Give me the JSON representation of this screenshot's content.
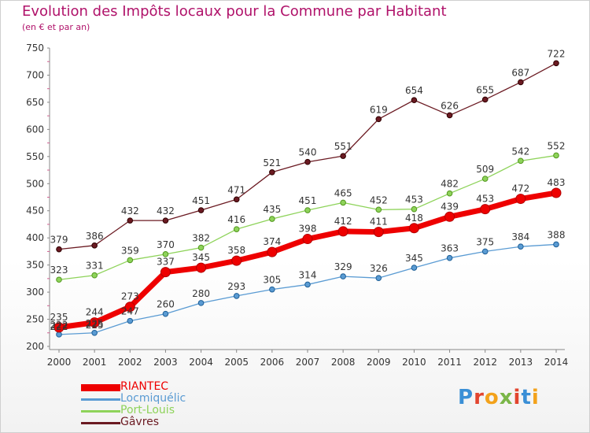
{
  "title": "Evolution des Impôts locaux pour la Commune par Habitant",
  "subtitle": "(en € et par an)",
  "logo_letters": [
    "P",
    "r",
    "o",
    "x",
    "i",
    "t",
    "i"
  ],
  "logo_colors": [
    "#3a8fd6",
    "#e2452f",
    "#f3a21b",
    "#7ab648",
    "#e2452f",
    "#3a8fd6",
    "#f3a21b"
  ],
  "chart_data": {
    "type": "line",
    "x": [
      2000,
      2001,
      2002,
      2003,
      2004,
      2005,
      2006,
      2007,
      2008,
      2009,
      2010,
      2011,
      2012,
      2013,
      2014
    ],
    "ylim": [
      200,
      750
    ],
    "yticks": [
      200,
      250,
      300,
      350,
      400,
      450,
      500,
      550,
      600,
      650,
      700,
      750
    ],
    "grid": false,
    "legend_position": "bottom-left",
    "series": [
      {
        "name": "Gâvres",
        "color": "#6b1a22",
        "width": 1,
        "values": [
          379,
          386,
          432,
          432,
          451,
          471,
          521,
          540,
          551,
          619,
          654,
          626,
          655,
          687,
          722
        ]
      },
      {
        "name": "Port-Louis",
        "color": "#8ed35a",
        "width": 1,
        "values": [
          323,
          331,
          359,
          370,
          382,
          416,
          435,
          451,
          465,
          452,
          453,
          482,
          509,
          542,
          552
        ]
      },
      {
        "name": "Locmiquélic",
        "color": "#5a9bd3",
        "width": 1,
        "values": [
          222,
          225,
          247,
          260,
          280,
          293,
          305,
          314,
          329,
          326,
          345,
          363,
          375,
          384,
          388
        ]
      },
      {
        "name": "RIANTEC",
        "color": "#ee0000",
        "width": 6,
        "values": [
          235,
          244,
          273,
          337,
          345,
          358,
          374,
          398,
          412,
          411,
          418,
          439,
          453,
          472,
          483
        ]
      }
    ],
    "data_labels": [
      {
        "series": 2,
        "index": 0,
        "text": "222"
      },
      {
        "series": 2,
        "index": 1,
        "text": "225"
      }
    ]
  }
}
